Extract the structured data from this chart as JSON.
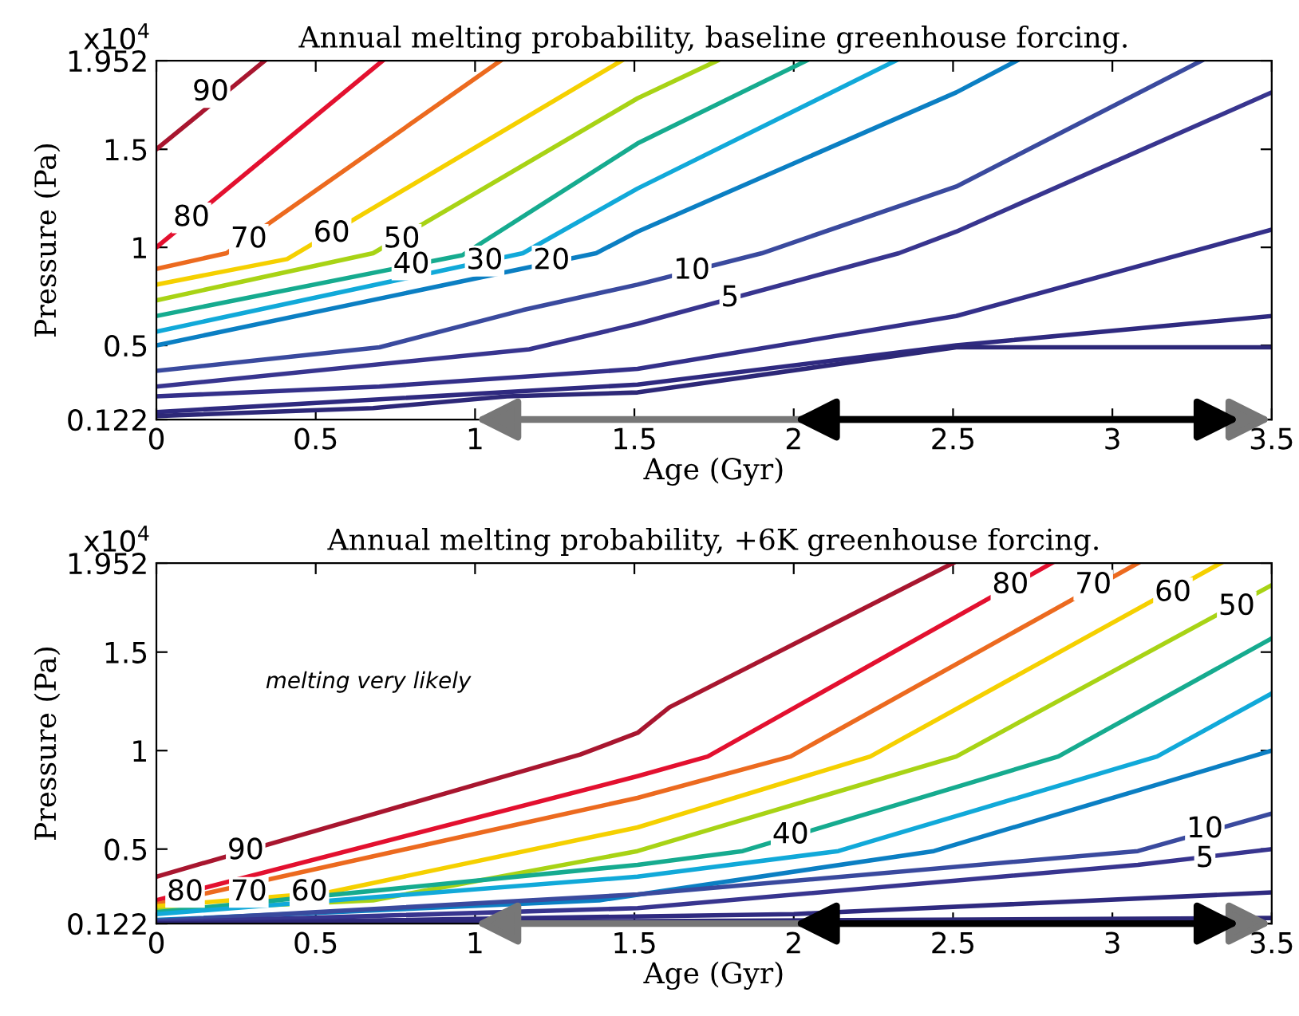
{
  "chart_data": [
    {
      "type": "line",
      "title": "Annual melting probability, baseline greenhouse forcing.",
      "xlabel": "Age (Gyr)",
      "ylabel": "Pressure (Pa)",
      "xlim": [
        0,
        3.5
      ],
      "xticks": [
        0,
        0.5,
        1,
        1.5,
        2,
        2.5,
        3,
        3.5
      ],
      "ylim": [
        0.122,
        1.952
      ],
      "yticks": [
        0.122,
        0.5,
        1,
        1.5,
        1.952
      ],
      "grid": false,
      "legend": false,
      "series": [
        {
          "color": "#a8162f",
          "x": [
            0,
            0.34
          ],
          "values": [
            1.5,
            1.952
          ]
        },
        {
          "color": "#e3102f",
          "x": [
            0,
            0.71
          ],
          "values": [
            1.0,
            1.952
          ]
        },
        {
          "color": "#ec6a1f",
          "x": [
            0,
            0.22,
            1.08
          ],
          "values": [
            0.89,
            0.97,
            1.952
          ]
        },
        {
          "color": "#f5d000",
          "x": [
            0,
            0.41,
            1.46
          ],
          "values": [
            0.81,
            0.94,
            1.952
          ]
        },
        {
          "color": "#a8d315",
          "x": [
            0,
            0.68,
            1.51,
            1.76
          ],
          "values": [
            0.73,
            0.97,
            1.76,
            1.952
          ]
        },
        {
          "color": "#16ab8f",
          "x": [
            0,
            0.96,
            1.51,
            2.04
          ],
          "values": [
            0.65,
            0.96,
            1.53,
            1.952
          ]
        },
        {
          "color": "#11a9d9",
          "x": [
            0,
            1.15,
            1.51,
            2.32
          ],
          "values": [
            0.57,
            0.97,
            1.3,
            1.952
          ]
        },
        {
          "color": "#0b7fc3",
          "x": [
            0,
            1.38,
            1.51,
            2.51,
            2.7
          ],
          "values": [
            0.5,
            0.97,
            1.08,
            1.79,
            1.952
          ]
        },
        {
          "color": "#3a4a9e",
          "x": [
            0,
            0.7,
            1.15,
            1.51,
            1.9,
            2.51,
            3.28
          ],
          "values": [
            0.37,
            0.49,
            0.68,
            0.81,
            0.97,
            1.31,
            1.952
          ]
        },
        {
          "color": "#38358f",
          "x": [
            0,
            1.17,
            1.51,
            2.33,
            2.51,
            3.5
          ],
          "values": [
            0.29,
            0.48,
            0.61,
            0.97,
            1.08,
            1.79
          ]
        },
        {
          "color": "#34308a",
          "x": [
            0,
            0.7,
            1.51,
            2.51,
            3.5
          ],
          "values": [
            0.24,
            0.29,
            0.38,
            0.65,
            1.09
          ]
        },
        {
          "color": "#2f2a80",
          "x": [
            0,
            1.51,
            2.51,
            3.5
          ],
          "values": [
            0.16,
            0.3,
            0.5,
            0.65
          ]
        },
        {
          "color": "#2d2878",
          "x": [
            0,
            0.68,
            1.1,
            1.51,
            2.51,
            3.5
          ],
          "values": [
            0.14,
            0.18,
            0.24,
            0.26,
            0.49,
            0.49
          ]
        }
      ],
      "annotations": [
        "x10$^{4}$",
        {
          "text": "90",
          "x": 0.17,
          "y": 1.79
        },
        {
          "text": "80",
          "x": 0.11,
          "y": 1.15
        },
        {
          "text": "70",
          "x": 0.29,
          "y": 1.04
        },
        {
          "text": "60",
          "x": 0.55,
          "y": 1.07
        },
        {
          "text": "50",
          "x": 0.77,
          "y": 1.04
        },
        {
          "text": "40",
          "x": 0.8,
          "y": 0.91
        },
        {
          "text": "30",
          "x": 1.03,
          "y": 0.93
        },
        {
          "text": "20",
          "x": 1.24,
          "y": 0.93
        },
        {
          "text": "10",
          "x": 1.68,
          "y": 0.88
        },
        {
          "text": "5",
          "x": 1.8,
          "y": 0.74
        }
      ]
    },
    {
      "type": "line",
      "title": "Annual melting probability, +6K greenhouse forcing.",
      "xlabel": "Age (Gyr)",
      "ylabel": "Pressure (Pa)",
      "xlim": [
        0,
        3.5
      ],
      "xticks": [
        0,
        0.5,
        1,
        1.5,
        2,
        2.5,
        3,
        3.5
      ],
      "ylim": [
        0.122,
        1.952
      ],
      "yticks": [
        0.122,
        0.5,
        1,
        1.5,
        1.952
      ],
      "grid": false,
      "legend": false,
      "series": [
        {
          "color": "#a8162f",
          "x": [
            0,
            1.33,
            1.51,
            1.61,
            2.5
          ],
          "values": [
            0.36,
            0.98,
            1.09,
            1.22,
            1.952
          ]
        },
        {
          "color": "#e3102f",
          "x": [
            0,
            1.51,
            1.73,
            2.81
          ],
          "values": [
            0.24,
            0.87,
            0.97,
            1.952
          ]
        },
        {
          "color": "#ec6a1f",
          "x": [
            0,
            1.51,
            1.99,
            3.08
          ],
          "values": [
            0.22,
            0.76,
            0.97,
            1.952
          ]
        },
        {
          "color": "#f5d000",
          "x": [
            0,
            0.54,
            1.51,
            2.24,
            3.34
          ],
          "values": [
            0.21,
            0.28,
            0.61,
            0.97,
            1.952
          ]
        },
        {
          "color": "#a8d315",
          "x": [
            0,
            0.68,
            1.51,
            2.51,
            3.5
          ],
          "values": [
            0.19,
            0.24,
            0.49,
            0.97,
            1.84
          ]
        },
        {
          "color": "#16ab8f",
          "x": [
            0,
            1.51,
            1.84,
            2.83,
            3.5
          ],
          "values": [
            0.18,
            0.42,
            0.49,
            0.97,
            1.57
          ]
        },
        {
          "color": "#11a9d9",
          "x": [
            0,
            1.51,
            2.14,
            3.14,
            3.5
          ],
          "values": [
            0.17,
            0.36,
            0.49,
            0.97,
            1.29
          ]
        },
        {
          "color": "#0b7fc3",
          "x": [
            0,
            1.39,
            2.44,
            3.5
          ],
          "values": [
            0.14,
            0.24,
            0.49,
            1.0
          ]
        },
        {
          "color": "#3a4a9e",
          "x": [
            0,
            1.51,
            3.08,
            3.5
          ],
          "values": [
            0.135,
            0.27,
            0.49,
            0.68
          ]
        },
        {
          "color": "#38358f",
          "x": [
            0,
            1.51,
            3.08,
            3.5
          ],
          "values": [
            0.128,
            0.2,
            0.42,
            0.5
          ]
        },
        {
          "color": "#2f2a80",
          "x": [
            0,
            2,
            3.5
          ],
          "values": [
            0.122,
            0.17,
            0.28
          ]
        },
        {
          "color": "#2d2878",
          "x": [
            0,
            3.5
          ],
          "values": [
            0.122,
            0.15
          ]
        }
      ],
      "annotations": [
        "x10$^{4}$",
        "melting very likely",
        {
          "text": "90",
          "x": 0.28,
          "y": 0.49
        },
        {
          "text": "80",
          "x": 0.09,
          "y": 0.28
        },
        {
          "text": "70",
          "x": 0.29,
          "y": 0.28
        },
        {
          "text": "60",
          "x": 0.48,
          "y": 0.28
        },
        {
          "text": "40",
          "x": 1.99,
          "y": 0.57
        },
        {
          "text": "80",
          "x": 2.68,
          "y": 1.84
        },
        {
          "text": "70",
          "x": 2.94,
          "y": 1.84
        },
        {
          "text": "60",
          "x": 3.19,
          "y": 1.8
        },
        {
          "text": "50",
          "x": 3.39,
          "y": 1.73
        },
        {
          "text": "10",
          "x": 3.29,
          "y": 0.6
        },
        {
          "text": "5",
          "x": 3.29,
          "y": 0.45
        }
      ]
    }
  ]
}
